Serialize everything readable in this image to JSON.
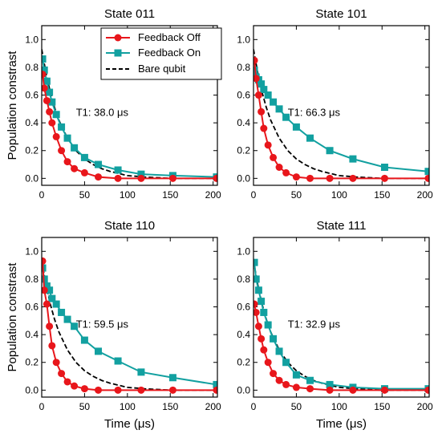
{
  "chart_data": [
    {
      "type": "line",
      "title": "State 011",
      "annotation": "T1: 38.0 μs",
      "ylabel": "Population constrast",
      "xlabel": "",
      "xlim": [
        0,
        205
      ],
      "ylim": [
        -0.05,
        1.1
      ],
      "xticks": [
        "0",
        "50",
        "100",
        "150",
        "200"
      ],
      "yticks": [
        "0.0",
        "0.2",
        "0.4",
        "0.6",
        "0.8",
        "1.0"
      ],
      "legend_position": "upper-right",
      "series": [
        {
          "name": "Feedback Off",
          "color": "#e8161b",
          "marker": "circle",
          "x": [
            1,
            3,
            6,
            9,
            12,
            17,
            23,
            30,
            38,
            50,
            66,
            89,
            116,
            153,
            204
          ],
          "y": [
            0.75,
            0.65,
            0.56,
            0.48,
            0.4,
            0.3,
            0.2,
            0.12,
            0.07,
            0.04,
            0.01,
            0.0,
            0.0,
            0.0,
            0.0
          ]
        },
        {
          "name": "Feedback On",
          "color": "#12a0a0",
          "marker": "square",
          "x": [
            1,
            3,
            6,
            9,
            12,
            17,
            23,
            30,
            38,
            50,
            66,
            89,
            116,
            153,
            204
          ],
          "y": [
            0.86,
            0.78,
            0.7,
            0.62,
            0.55,
            0.46,
            0.37,
            0.29,
            0.22,
            0.15,
            0.1,
            0.06,
            0.03,
            0.02,
            0.01
          ]
        },
        {
          "name": "Bare qubit",
          "color": "#000000",
          "marker": "none",
          "dash": true,
          "x": [
            0,
            5,
            10,
            15,
            20,
            30,
            40,
            50,
            60,
            70,
            80,
            100,
            120,
            150,
            205
          ],
          "y": [
            0.93,
            0.76,
            0.62,
            0.51,
            0.42,
            0.29,
            0.2,
            0.14,
            0.1,
            0.07,
            0.05,
            0.02,
            0.01,
            0.0,
            0.0
          ]
        }
      ]
    },
    {
      "type": "line",
      "title": "State 101",
      "annotation": "T1: 66.3 μs",
      "ylabel": "",
      "xlabel": "",
      "xlim": [
        0,
        205
      ],
      "ylim": [
        -0.05,
        1.1
      ],
      "xticks": [
        "0",
        "50",
        "100",
        "150",
        "200"
      ],
      "yticks": [
        "0.0",
        "0.2",
        "0.4",
        "0.6",
        "0.8",
        "1.0"
      ],
      "series": [
        {
          "name": "Feedback Off",
          "color": "#e8161b",
          "marker": "circle",
          "x": [
            1,
            3,
            6,
            9,
            12,
            17,
            23,
            30,
            38,
            50,
            66,
            89,
            116,
            153,
            204
          ],
          "y": [
            0.85,
            0.72,
            0.6,
            0.48,
            0.36,
            0.24,
            0.15,
            0.08,
            0.04,
            0.01,
            0.0,
            0.0,
            0.0,
            0.0,
            0.0
          ]
        },
        {
          "name": "Feedback On",
          "color": "#12a0a0",
          "marker": "square",
          "x": [
            1,
            3,
            6,
            9,
            12,
            17,
            23,
            30,
            38,
            50,
            66,
            89,
            116,
            153,
            204
          ],
          "y": [
            0.78,
            0.73,
            0.71,
            0.68,
            0.64,
            0.6,
            0.55,
            0.5,
            0.44,
            0.37,
            0.29,
            0.2,
            0.14,
            0.08,
            0.05
          ]
        },
        {
          "name": "Bare qubit",
          "color": "#000000",
          "marker": "none",
          "dash": true,
          "x": [
            0,
            5,
            10,
            15,
            20,
            30,
            40,
            50,
            60,
            70,
            80,
            100,
            120,
            150,
            205
          ],
          "y": [
            0.93,
            0.76,
            0.62,
            0.51,
            0.42,
            0.29,
            0.2,
            0.14,
            0.1,
            0.07,
            0.05,
            0.02,
            0.01,
            0.0,
            0.0
          ]
        }
      ]
    },
    {
      "type": "line",
      "title": "State 110",
      "annotation": "T1: 59.5 μs",
      "ylabel": "Population constrast",
      "xlabel": "Time (μs)",
      "xlim": [
        0,
        205
      ],
      "ylim": [
        -0.05,
        1.1
      ],
      "xticks": [
        "0",
        "50",
        "100",
        "150",
        "200"
      ],
      "yticks": [
        "0.0",
        "0.2",
        "0.4",
        "0.6",
        "0.8",
        "1.0"
      ],
      "series": [
        {
          "name": "Feedback Off",
          "color": "#e8161b",
          "marker": "circle",
          "x": [
            1,
            3,
            6,
            9,
            12,
            17,
            23,
            30,
            38,
            50,
            66,
            89,
            116,
            153,
            204
          ],
          "y": [
            0.93,
            0.72,
            0.62,
            0.46,
            0.32,
            0.2,
            0.12,
            0.06,
            0.03,
            0.01,
            0.0,
            0.0,
            0.0,
            0.0,
            0.0
          ]
        },
        {
          "name": "Feedback On",
          "color": "#12a0a0",
          "marker": "square",
          "x": [
            1,
            3,
            6,
            9,
            12,
            17,
            23,
            30,
            38,
            50,
            66,
            89,
            116,
            153,
            204
          ],
          "y": [
            0.88,
            0.8,
            0.75,
            0.72,
            0.66,
            0.62,
            0.56,
            0.51,
            0.46,
            0.36,
            0.28,
            0.21,
            0.13,
            0.09,
            0.04
          ]
        },
        {
          "name": "Bare qubit",
          "color": "#000000",
          "marker": "none",
          "dash": true,
          "x": [
            0,
            5,
            10,
            15,
            20,
            30,
            40,
            50,
            60,
            70,
            80,
            100,
            120,
            150,
            205
          ],
          "y": [
            0.93,
            0.76,
            0.62,
            0.51,
            0.42,
            0.29,
            0.2,
            0.14,
            0.1,
            0.07,
            0.05,
            0.02,
            0.01,
            0.0,
            0.0
          ]
        }
      ]
    },
    {
      "type": "line",
      "title": "State 111",
      "annotation": "T1: 32.9 μs",
      "ylabel": "",
      "xlabel": "Time (μs)",
      "xlim": [
        0,
        205
      ],
      "ylim": [
        -0.05,
        1.1
      ],
      "xticks": [
        "0",
        "50",
        "100",
        "150",
        "200"
      ],
      "yticks": [
        "0.0",
        "0.2",
        "0.4",
        "0.6",
        "0.8",
        "1.0"
      ],
      "series": [
        {
          "name": "Feedback Off",
          "color": "#e8161b",
          "marker": "circle",
          "x": [
            1,
            3,
            6,
            9,
            12,
            17,
            23,
            30,
            38,
            50,
            66,
            89,
            116,
            153,
            204
          ],
          "y": [
            0.62,
            0.56,
            0.46,
            0.37,
            0.29,
            0.2,
            0.12,
            0.07,
            0.04,
            0.02,
            0.01,
            0.0,
            0.0,
            0.0,
            0.0
          ]
        },
        {
          "name": "Feedback On",
          "color": "#12a0a0",
          "marker": "square",
          "x": [
            1,
            3,
            6,
            9,
            12,
            17,
            23,
            30,
            38,
            50,
            66,
            89,
            116,
            153,
            204
          ],
          "y": [
            0.92,
            0.8,
            0.72,
            0.64,
            0.56,
            0.47,
            0.37,
            0.28,
            0.2,
            0.11,
            0.07,
            0.04,
            0.02,
            0.01,
            0.01
          ]
        },
        {
          "name": "Bare qubit",
          "color": "#000000",
          "marker": "none",
          "dash": true,
          "x": [
            0,
            5,
            10,
            15,
            20,
            30,
            40,
            50,
            60,
            70,
            80,
            100,
            120,
            150,
            205
          ],
          "y": [
            0.93,
            0.76,
            0.62,
            0.51,
            0.42,
            0.29,
            0.2,
            0.14,
            0.1,
            0.07,
            0.05,
            0.02,
            0.01,
            0.0,
            0.0
          ]
        }
      ]
    }
  ],
  "legend": {
    "entries": [
      "Feedback Off",
      "Feedback On",
      "Bare qubit"
    ]
  }
}
